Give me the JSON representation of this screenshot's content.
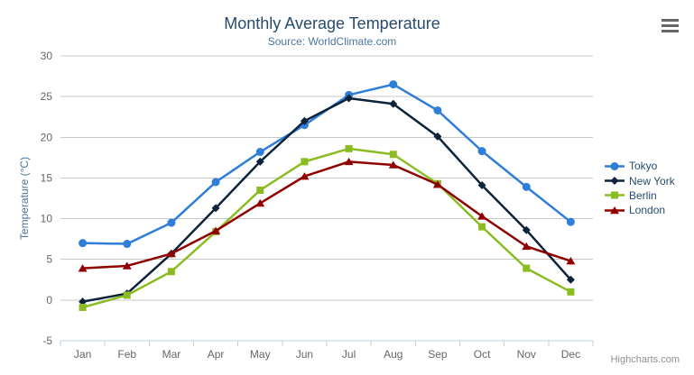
{
  "export_menu": {
    "icon": "hamburger-icon",
    "tooltip": "Chart context menu"
  },
  "credits": {
    "label": "Highcharts.com"
  },
  "palette": {
    "background": "#ffffff",
    "title": "#274b6d",
    "subtitle": "#4d759e",
    "axis_title": "#4d759e",
    "tick_label": "#666666",
    "grid_line": "#c8c8c8",
    "axis_line": "#c0d0e0",
    "legend_text": "#274b6d",
    "credits_text": "#909090",
    "export_icon": "#666666"
  },
  "chart_data": {
    "type": "line",
    "title": "Monthly Average Temperature",
    "subtitle": "Source: WorldClimate.com",
    "xlabel": "",
    "ylabel": "Temperature (°C)",
    "ylim": [
      -5,
      30
    ],
    "ytick_step": 5,
    "grid": true,
    "legend_position": "right",
    "categories": [
      "Jan",
      "Feb",
      "Mar",
      "Apr",
      "May",
      "Jun",
      "Jul",
      "Aug",
      "Sep",
      "Oct",
      "Nov",
      "Dec"
    ],
    "series": [
      {
        "name": "Tokyo",
        "color": "#2f7ed8",
        "marker": "circle",
        "values": [
          7.0,
          6.9,
          9.5,
          14.5,
          18.2,
          21.5,
          25.2,
          26.5,
          23.3,
          18.3,
          13.9,
          9.6
        ]
      },
      {
        "name": "New York",
        "color": "#0d233a",
        "marker": "diamond",
        "values": [
          -0.2,
          0.8,
          5.7,
          11.3,
          17.0,
          22.0,
          24.8,
          24.1,
          20.1,
          14.1,
          8.6,
          2.5
        ]
      },
      {
        "name": "Berlin",
        "color": "#8bbc21",
        "marker": "square",
        "values": [
          -0.9,
          0.6,
          3.5,
          8.4,
          13.5,
          17.0,
          18.6,
          17.9,
          14.3,
          9.0,
          3.9,
          1.0
        ]
      },
      {
        "name": "London",
        "color": "#910000",
        "marker": "triangle",
        "values": [
          3.9,
          4.2,
          5.7,
          8.5,
          11.9,
          15.2,
          17.0,
          16.6,
          14.2,
          10.3,
          6.6,
          4.8
        ]
      }
    ]
  }
}
